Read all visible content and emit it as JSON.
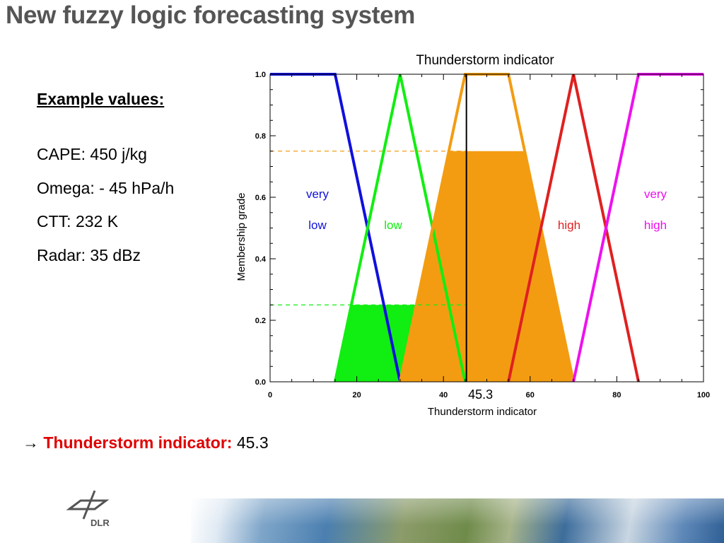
{
  "slide": {
    "title": "New fuzzy logic forecasting system",
    "example_heading": "Example values:",
    "examples": [
      "CAPE: 450 j/kg",
      "Omega: - 45 hPa/h",
      "CTT: 232 K",
      "Radar: 35 dBz"
    ],
    "result_arrow": "→",
    "result_label": "Thunderstorm indicator:",
    "result_value": "45.3",
    "logo_text": "DLR"
  },
  "chart_data": {
    "type": "line",
    "title": "Thunderstorm indicator",
    "xlabel": "Thunderstorm indicator",
    "ylabel": "Membership grade",
    "xlim": [
      0,
      100
    ],
    "ylim": [
      0,
      1.0
    ],
    "xticks": [
      "0",
      "20",
      "40",
      "60",
      "80",
      "100"
    ],
    "yticks": [
      "0.0",
      "0.2",
      "0.4",
      "0.6",
      "0.8",
      "1.0"
    ],
    "grid": false,
    "series": [
      {
        "label": [
          "very",
          "low"
        ],
        "color": "#1010dd",
        "x": [
          0,
          15,
          30
        ],
        "y": [
          1,
          1,
          0
        ]
      },
      {
        "label": [
          "low"
        ],
        "color": "#11ee11",
        "x": [
          15,
          30,
          45
        ],
        "y": [
          0,
          1,
          0
        ]
      },
      {
        "label": [],
        "color": "#f39c12",
        "x": [
          30,
          45,
          55,
          70
        ],
        "y": [
          0,
          1,
          1,
          0
        ]
      },
      {
        "label": [
          "high"
        ],
        "color": "#e02020",
        "x": [
          55,
          70,
          85
        ],
        "y": [
          0,
          1,
          0
        ]
      },
      {
        "label": [
          "very",
          "high"
        ],
        "color": "#ee11ee",
        "x": [
          70,
          85,
          100
        ],
        "y": [
          0,
          1,
          1
        ]
      }
    ],
    "fills": [
      {
        "color": "#11ee11",
        "x": [
          15,
          19,
          34,
          30
        ],
        "y": [
          0,
          0.25,
          0.25,
          0
        ]
      },
      {
        "color": "#f39c12",
        "x": [
          30,
          41.25,
          58.75,
          70
        ],
        "y": [
          0,
          0.75,
          0.75,
          0
        ]
      }
    ],
    "reference_lines": [
      {
        "color": "#f39c12",
        "y": 0.75,
        "style": "dashed"
      },
      {
        "color": "#11ee11",
        "y": 0.25,
        "style": "dashed"
      }
    ],
    "marker": {
      "x": 45.3,
      "label": "45.3",
      "color": "#000000"
    }
  }
}
